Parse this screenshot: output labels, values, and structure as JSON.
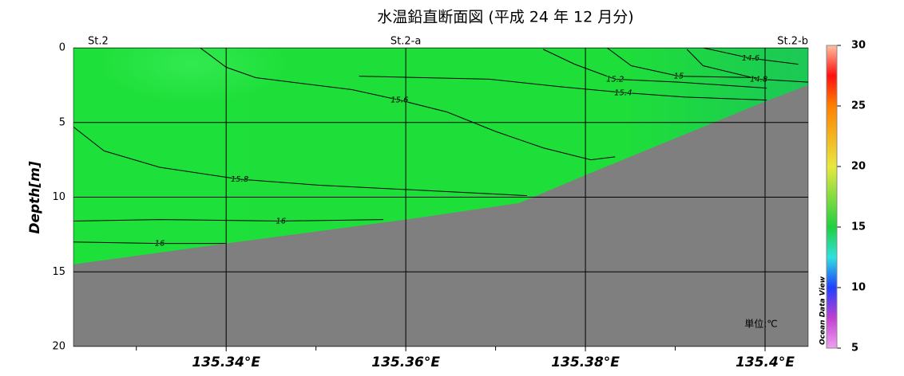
{
  "chart_data": {
    "type": "contour",
    "title": "水温鉛直断面図 (平成 24 年 12 月分)",
    "ylabel": "Depth[m]",
    "unit_label": "単位:℃",
    "xlim": [
      135.323,
      135.4048
    ],
    "ylim": [
      0,
      20
    ],
    "inverted_y": true,
    "grid": true,
    "xticks": [
      {
        "value": 135.34,
        "label": "135.34°E"
      },
      {
        "value": 135.36,
        "label": "135.36°E"
      },
      {
        "value": 135.38,
        "label": "135.38°E"
      },
      {
        "value": 135.4,
        "label": "135.4°E"
      }
    ],
    "xminorticks": [
      135.33,
      135.35,
      135.37,
      135.39
    ],
    "yticks": [
      0,
      5,
      10,
      15,
      20
    ],
    "stations": [
      {
        "name": "St.2",
        "lon": 135.323
      },
      {
        "name": "St.2-a",
        "lon": 135.36
      },
      {
        "name": "St.2-b",
        "lon": 135.4048
      }
    ],
    "bottom": {
      "color": "#7f7f7f",
      "lon": [
        135.323,
        135.34,
        135.36,
        135.3726,
        135.3801,
        135.4,
        135.4048
      ],
      "depth": [
        14.5,
        13.1,
        11.5,
        10.4,
        8.5,
        3.6,
        2.5
      ]
    },
    "contours": [
      {
        "level": 15.6,
        "lon": [
          135.3371,
          135.34,
          135.3433,
          135.3486,
          135.354,
          135.3593,
          135.3646,
          135.37,
          135.3753,
          135.3806,
          135.3833
        ],
        "depth": [
          0,
          1.3,
          2.0,
          2.4,
          2.8,
          3.5,
          4.3,
          5.6,
          6.7,
          7.5,
          7.3
        ]
      },
      {
        "level": 15.4,
        "lon": [
          135.3548,
          135.3693,
          135.3771,
          135.3842,
          135.3911,
          135.4002
        ],
        "depth": [
          1.9,
          2.1,
          2.6,
          3.0,
          3.3,
          3.5
        ]
      },
      {
        "level": 15.2,
        "lon": [
          135.3753,
          135.3788,
          135.3833,
          135.3904,
          135.4002
        ],
        "depth": [
          0.1,
          1.1,
          2.1,
          2.3,
          2.7
        ]
      },
      {
        "level": 15,
        "lon": [
          135.3824,
          135.3851,
          135.3904,
          135.3993
        ],
        "depth": [
          0,
          1.2,
          1.9,
          2.0
        ]
      },
      {
        "level": 14.8,
        "lon": [
          135.3913,
          135.3931,
          135.3993,
          135.4048
        ],
        "depth": [
          0.1,
          1.2,
          2.1,
          2.3
        ]
      },
      {
        "level": 14.6,
        "lon": [
          135.3931,
          135.3984,
          135.4037
        ],
        "depth": [
          0,
          0.7,
          1.1
        ]
      },
      {
        "level": 15.8,
        "lon": [
          135.323,
          135.3264,
          135.3326,
          135.3415,
          135.3504,
          135.3637,
          135.3735
        ],
        "depth": [
          5.3,
          6.9,
          8.0,
          8.8,
          9.2,
          9.6,
          9.9
        ]
      },
      {
        "level": 16,
        "lon": [
          135.323,
          135.3326,
          135.3461,
          135.3575
        ],
        "depth": [
          11.6,
          11.5,
          11.6,
          11.5
        ]
      },
      {
        "level": 16,
        "lon": [
          135.323,
          135.3326,
          135.34
        ],
        "depth": [
          13.0,
          13.1,
          13.1
        ]
      }
    ],
    "colorbar": {
      "lim": [
        5,
        30
      ],
      "ticks": [
        5,
        10,
        15,
        20,
        25,
        30
      ],
      "label": "Ocean Data View"
    }
  }
}
